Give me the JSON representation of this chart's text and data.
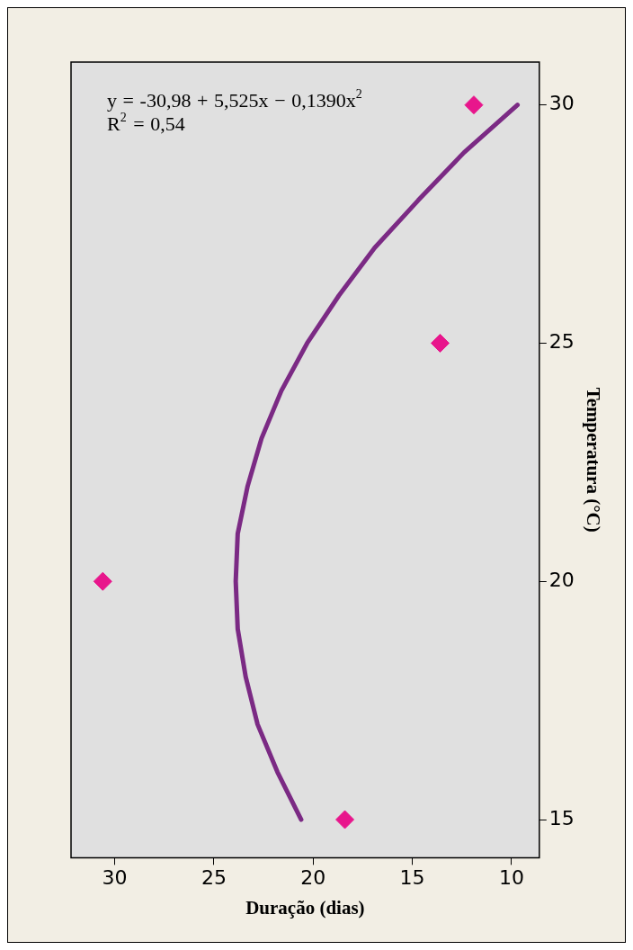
{
  "chart_data": {
    "type": "scatter",
    "xlabel": "Duração (dias)",
    "y2label": "Temperatura (°C)",
    "xlim": [
      32.2,
      8.6
    ],
    "xticks": [
      30,
      25,
      20,
      15,
      10
    ],
    "y2lim": [
      14.2,
      30.9
    ],
    "y2ticks": [
      15,
      20,
      25,
      30
    ],
    "marker": "diamond",
    "annotations": [
      "y = -30,98 + 5,525x − 0,1390x$^{2}$",
      "R$^{2}$ = 0,54"
    ],
    "series": [
      {
        "type": "scatter",
        "axis": "y2",
        "color": "#e8168c",
        "x": [
          18.4,
          30.6,
          13.6,
          11.9
        ],
        "values": [
          15,
          20,
          25,
          30
        ]
      },
      {
        "type": "line",
        "axis": "y2",
        "color": "#7b2a84",
        "marker": "none",
        "x": [
          20.6,
          21.8,
          22.8,
          23.4,
          23.8,
          23.9,
          23.8,
          23.3,
          22.6,
          21.6,
          20.3,
          18.7,
          16.9,
          14.7,
          12.4,
          9.7
        ],
        "values": [
          15,
          16,
          17,
          18,
          19,
          20,
          21,
          22,
          23,
          24,
          25,
          26,
          27,
          28,
          29,
          30
        ]
      }
    ]
  }
}
